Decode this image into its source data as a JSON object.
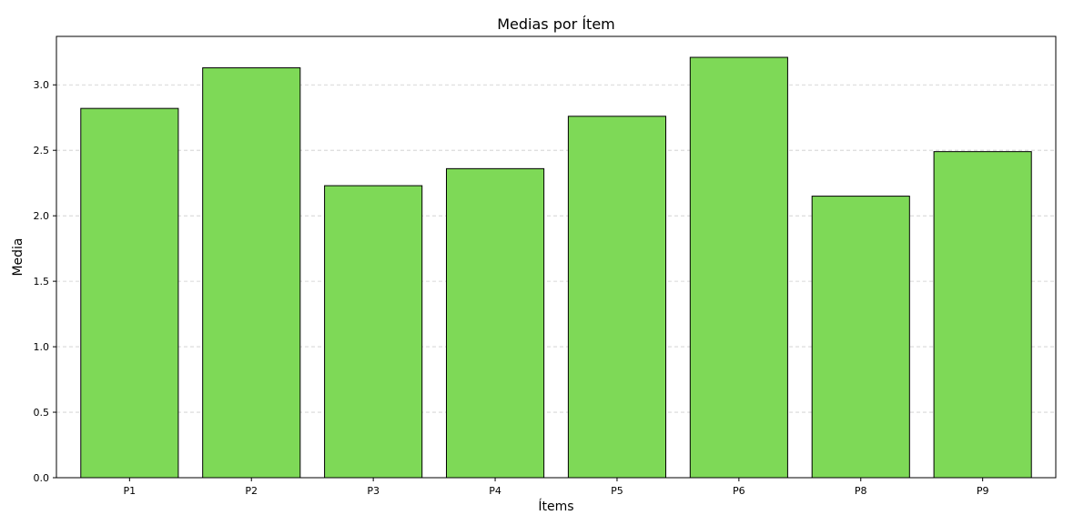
{
  "chart_data": {
    "type": "bar",
    "title": "Medias por Ítem",
    "xlabel": "Ítems",
    "ylabel": "Media",
    "categories": [
      "P1",
      "P2",
      "P3",
      "P4",
      "P5",
      "P6",
      "P8",
      "P9"
    ],
    "values": [
      2.82,
      3.13,
      2.23,
      2.36,
      2.76,
      3.21,
      2.15,
      2.49
    ],
    "ylim": [
      0,
      3.37
    ],
    "yticks": [
      "0.0",
      "0.5",
      "1.0",
      "1.5",
      "2.0",
      "2.5",
      "3.0"
    ],
    "grid": "y-dashed",
    "bar_color": "#7ed957",
    "edge_color": "#000000"
  }
}
